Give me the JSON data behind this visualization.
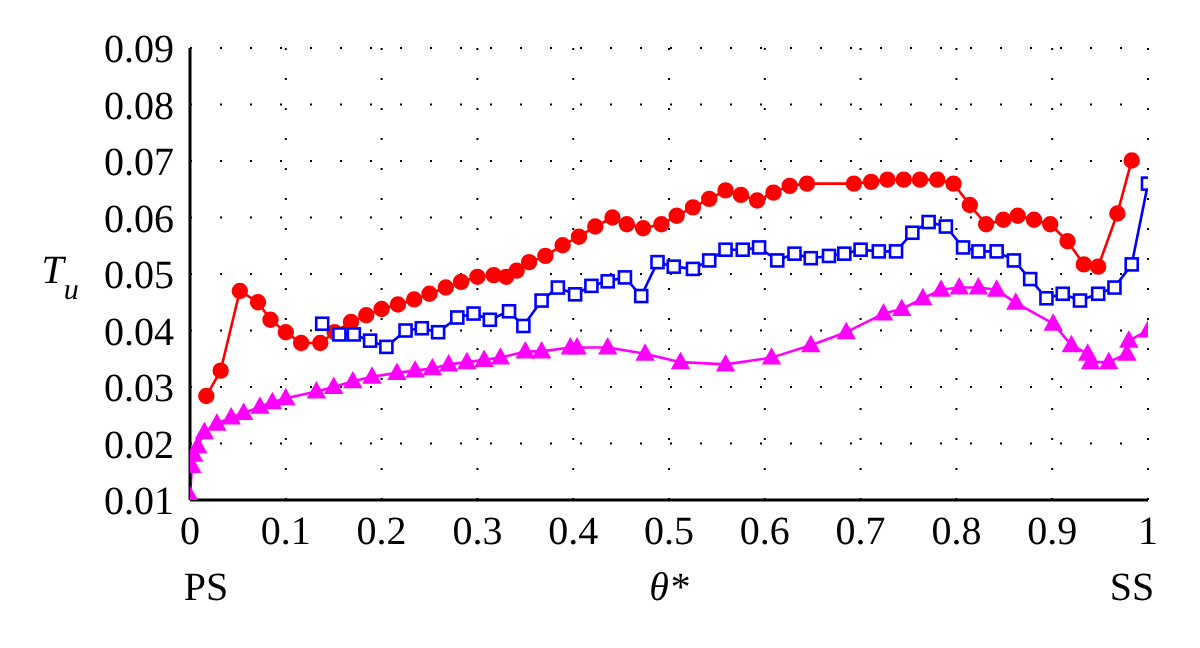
{
  "chart_data": {
    "type": "line",
    "xlabel": "θ*",
    "ylabel": "T$_{u}$",
    "annotations": [
      "PS",
      "SS"
    ],
    "xlim": [
      0,
      1
    ],
    "xticks": [
      0,
      0.1,
      0.2,
      0.3,
      0.4,
      0.5,
      0.6,
      0.7,
      0.8,
      0.9,
      1
    ],
    "ylim": [
      0.01,
      0.09
    ],
    "yticks": [
      0.01,
      0.02,
      0.03,
      0.04,
      0.05,
      0.06,
      0.07,
      0.08,
      0.09
    ],
    "grid": true,
    "line_style": "solid",
    "series": [
      {
        "color": "#ff0000",
        "marker": "circle",
        "x": [
          0.017,
          0.032,
          0.052,
          0.071,
          0.084,
          0.1,
          0.116,
          0.136,
          0.151,
          0.168,
          0.184,
          0.2,
          0.217,
          0.234,
          0.25,
          0.267,
          0.283,
          0.3,
          0.317,
          0.33,
          0.341,
          0.354,
          0.371,
          0.389,
          0.406,
          0.423,
          0.441,
          0.456,
          0.473,
          0.492,
          0.508,
          0.525,
          0.542,
          0.559,
          0.575,
          0.592,
          0.609,
          0.626,
          0.644,
          0.693,
          0.711,
          0.728,
          0.745,
          0.762,
          0.78,
          0.797,
          0.814,
          0.831,
          0.849,
          0.864,
          0.881,
          0.898,
          0.916,
          0.933,
          0.948,
          0.968,
          0.983
        ],
        "values": [
          0.0284,
          0.0329,
          0.047,
          0.045,
          0.0419,
          0.0397,
          0.0378,
          0.0378,
          0.0397,
          0.0415,
          0.0427,
          0.0438,
          0.0446,
          0.0455,
          0.0465,
          0.0476,
          0.0486,
          0.0495,
          0.0498,
          0.0495,
          0.0506,
          0.0521,
          0.0532,
          0.0551,
          0.0566,
          0.0584,
          0.06,
          0.0588,
          0.0581,
          0.0588,
          0.0603,
          0.0618,
          0.0633,
          0.0648,
          0.064,
          0.063,
          0.0644,
          0.0656,
          0.066,
          0.066,
          0.0663,
          0.0667,
          0.0667,
          0.0667,
          0.0667,
          0.066,
          0.0622,
          0.0588,
          0.0596,
          0.0603,
          0.0596,
          0.0588,
          0.0558,
          0.0517,
          0.0513,
          0.0607,
          0.0701
        ]
      },
      {
        "color": "#0000ff",
        "marker": "square",
        "x": [
          0.138,
          0.156,
          0.171,
          0.188,
          0.205,
          0.225,
          0.242,
          0.259,
          0.279,
          0.296,
          0.313,
          0.333,
          0.348,
          0.367,
          0.384,
          0.402,
          0.419,
          0.436,
          0.454,
          0.471,
          0.488,
          0.505,
          0.525,
          0.542,
          0.559,
          0.577,
          0.594,
          0.613,
          0.631,
          0.648,
          0.667,
          0.683,
          0.7,
          0.719,
          0.737,
          0.754,
          0.771,
          0.789,
          0.807,
          0.823,
          0.842,
          0.86,
          0.877,
          0.894,
          0.911,
          0.929,
          0.948,
          0.965,
          0.983,
          1.0
        ],
        "values": [
          0.0412,
          0.0393,
          0.0393,
          0.0382,
          0.0371,
          0.04,
          0.0404,
          0.0397,
          0.0423,
          0.043,
          0.0419,
          0.0434,
          0.0408,
          0.0453,
          0.0476,
          0.0464,
          0.0479,
          0.0487,
          0.0494,
          0.0461,
          0.0521,
          0.0513,
          0.0509,
          0.0524,
          0.0543,
          0.0543,
          0.0547,
          0.0524,
          0.0536,
          0.0528,
          0.0532,
          0.0536,
          0.0543,
          0.054,
          0.054,
          0.0573,
          0.0592,
          0.0584,
          0.0547,
          0.054,
          0.054,
          0.0524,
          0.0491,
          0.0457,
          0.0465,
          0.0453,
          0.0465,
          0.0476,
          0.0517,
          0.066
        ]
      },
      {
        "color": "#ff00ff",
        "marker": "triangle",
        "x": [
          0.0,
          0.002,
          0.004,
          0.008,
          0.015,
          0.028,
          0.043,
          0.056,
          0.073,
          0.086,
          0.1,
          0.132,
          0.15,
          0.17,
          0.19,
          0.216,
          0.235,
          0.253,
          0.27,
          0.289,
          0.307,
          0.324,
          0.35,
          0.367,
          0.397,
          0.404,
          0.436,
          0.475,
          0.512,
          0.559,
          0.607,
          0.648,
          0.685,
          0.724,
          0.743,
          0.765,
          0.784,
          0.803,
          0.823,
          0.842,
          0.862,
          0.901,
          0.92,
          0.937,
          0.94,
          0.959,
          0.978,
          0.98,
          1.0
        ],
        "values": [
          0.0107,
          0.016,
          0.018,
          0.0195,
          0.022,
          0.0235,
          0.0246,
          0.0254,
          0.0265,
          0.0273,
          0.028,
          0.0292,
          0.03,
          0.031,
          0.0318,
          0.0325,
          0.0329,
          0.0333,
          0.034,
          0.0344,
          0.0348,
          0.0352,
          0.0363,
          0.0363,
          0.037,
          0.037,
          0.037,
          0.0359,
          0.0344,
          0.034,
          0.0352,
          0.0374,
          0.0397,
          0.043,
          0.0438,
          0.0457,
          0.0472,
          0.0476,
          0.0476,
          0.0472,
          0.0449,
          0.0412,
          0.0374,
          0.0359,
          0.0344,
          0.0344,
          0.0359,
          0.0382,
          0.04
        ]
      }
    ]
  }
}
